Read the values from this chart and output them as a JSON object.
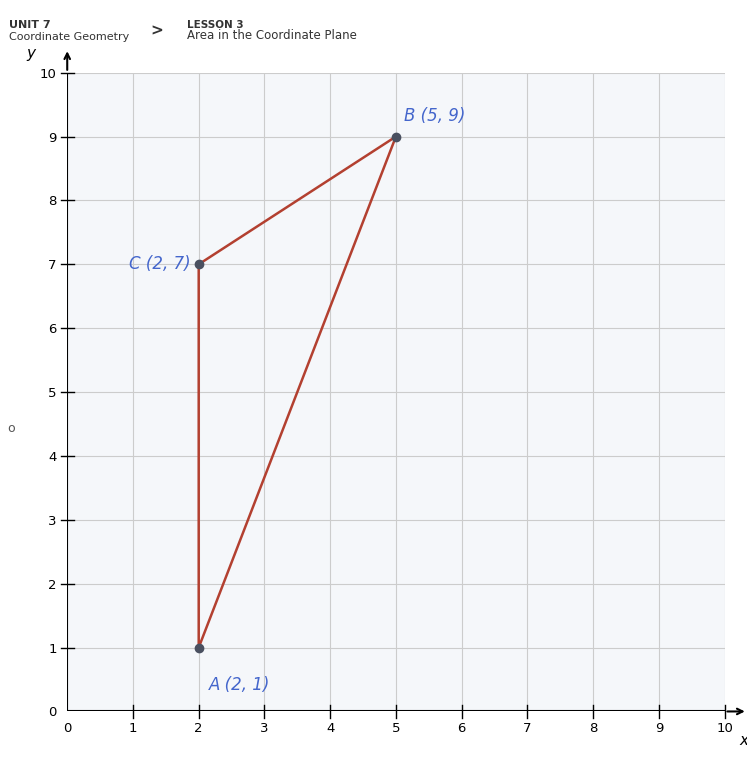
{
  "title_line1": "LESSON 3",
  "title_line2": "Area in the Coordinate Plane",
  "unit_label": "UNIT 7",
  "unit_sublabel": "Coordinate Geometry",
  "points": {
    "A": [
      2,
      1
    ],
    "B": [
      5,
      9
    ],
    "C": [
      2,
      7
    ]
  },
  "point_labels": {
    "A": "A (2, 1)",
    "B": "B (5, 9)",
    "C": "C (2, 7)"
  },
  "triangle_color": "#b34030",
  "point_color": "#4a5060",
  "label_color": "#4466cc",
  "xlim": [
    0,
    10
  ],
  "ylim": [
    0,
    10
  ],
  "xticks": [
    0,
    1,
    2,
    3,
    4,
    5,
    6,
    7,
    8,
    9,
    10
  ],
  "yticks": [
    0,
    1,
    2,
    3,
    4,
    5,
    6,
    7,
    8,
    9,
    10
  ],
  "grid_color": "#cccccc",
  "plot_bg": "#f5f7fa",
  "axis_label_x": "x",
  "axis_label_y": "y",
  "line_width": 1.8,
  "point_size": 6,
  "fig_bg": "#ffffff",
  "header_bg": "#ebebeb",
  "header_text_color": "#333333",
  "header_title_color": "#333333",
  "purple_bar_color": "#8855aa",
  "cyan_bar_color": "#33bbdd",
  "arrow_char": ">",
  "circle_marker": true
}
